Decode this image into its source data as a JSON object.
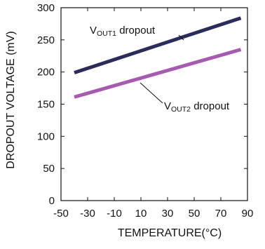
{
  "chart_data": {
    "type": "line",
    "title": "",
    "xlabel": "TEMPERATURE(°C)",
    "ylabel": "DROPOUT VOLTAGE (mV)",
    "xlim": [
      -50,
      90
    ],
    "ylim": [
      0,
      300
    ],
    "x_ticks": [
      -50,
      -30,
      -10,
      10,
      30,
      50,
      70,
      90
    ],
    "y_ticks": [
      0,
      50,
      100,
      150,
      200,
      250,
      300
    ],
    "grid": false,
    "series": [
      {
        "name": "VOUT1 dropout",
        "color": "#2a2c5c",
        "x": [
          -40,
          85
        ],
        "y": [
          199,
          284
        ]
      },
      {
        "name": "VOUT2 dropout",
        "color": "#a65bb0",
        "x": [
          -40,
          85
        ],
        "y": [
          161,
          235
        ]
      }
    ],
    "annotations": [
      {
        "text_main": "V",
        "text_sub": "OUT1",
        "text_rest": " dropout",
        "series": 0
      },
      {
        "text_main": "V",
        "text_sub": "OUT2",
        "text_rest": " dropout",
        "series": 1
      }
    ]
  }
}
